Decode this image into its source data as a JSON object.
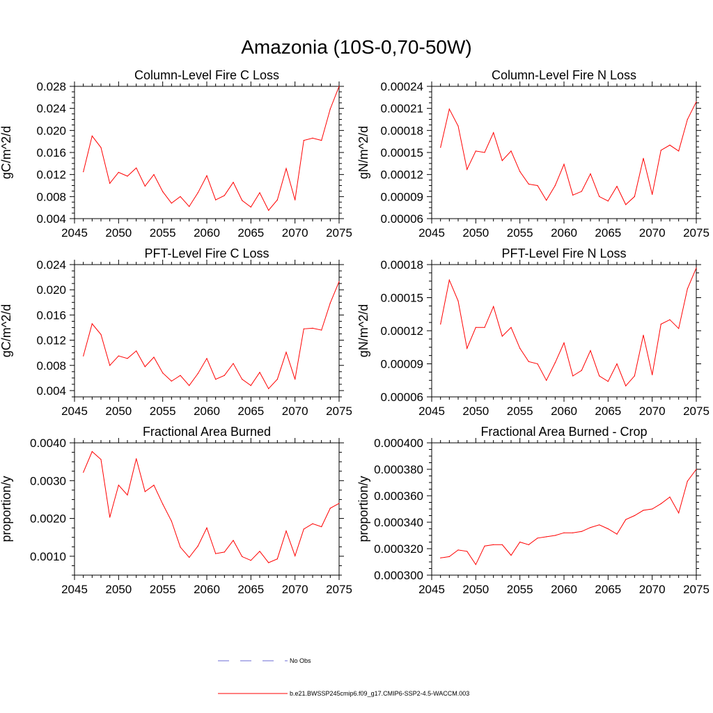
{
  "title": "Amazonia (10S-0,70-50W)",
  "line_color": "#ff0000",
  "obs_color": "#6b6bd6",
  "legend": [
    {
      "label": "No Obs",
      "style": "dashed",
      "color": "#6b6bd6"
    },
    {
      "label": "b.e21.BWSSP245cmip6.f09_g17.CMIP6-SSP2-4.5-WACCM.003",
      "style": "solid",
      "color": "#ff0000"
    }
  ],
  "chart_data": [
    {
      "type": "line",
      "title": "Column-Level Fire C Loss",
      "ylabel": "gC/m^2/d",
      "xlim": [
        2045,
        2075
      ],
      "ylim": [
        0.004,
        0.028
      ],
      "xticks": [
        "2045",
        "2050",
        "2055",
        "2060",
        "2065",
        "2070",
        "2075"
      ],
      "yticks": [
        "0.004",
        "0.008",
        "0.012",
        "0.016",
        "0.020",
        "0.024",
        "0.028"
      ],
      "x": [
        2046,
        2047,
        2048,
        2049,
        2050,
        2051,
        2052,
        2053,
        2054,
        2055,
        2056,
        2057,
        2058,
        2059,
        2060,
        2061,
        2062,
        2063,
        2064,
        2065,
        2066,
        2067,
        2068,
        2069,
        2070,
        2071,
        2072,
        2073,
        2074,
        2075
      ],
      "values": [
        0.0125,
        0.019,
        0.0169,
        0.0104,
        0.0124,
        0.0117,
        0.0132,
        0.0099,
        0.012,
        0.0089,
        0.0068,
        0.008,
        0.0062,
        0.0087,
        0.0118,
        0.0074,
        0.0082,
        0.0106,
        0.0073,
        0.0061,
        0.0087,
        0.0055,
        0.0074,
        0.0131,
        0.0074,
        0.0182,
        0.0186,
        0.0182,
        0.0239,
        0.028
      ]
    },
    {
      "type": "line",
      "title": "Column-Level Fire N Loss",
      "ylabel": "gN/m^2/d",
      "xlim": [
        2045,
        2075
      ],
      "ylim": [
        6e-05,
        0.00024
      ],
      "xticks": [
        "2045",
        "2050",
        "2055",
        "2060",
        "2065",
        "2070",
        "2075"
      ],
      "yticks": [
        "0.00006",
        "0.00009",
        "0.00012",
        "0.00015",
        "0.00018",
        "0.00021",
        "0.00024"
      ],
      "x": [
        2046,
        2047,
        2048,
        2049,
        2050,
        2051,
        2052,
        2053,
        2054,
        2055,
        2056,
        2057,
        2058,
        2059,
        2060,
        2061,
        2062,
        2063,
        2064,
        2065,
        2066,
        2067,
        2068,
        2069,
        2070,
        2071,
        2072,
        2073,
        2074,
        2075
      ],
      "values": [
        0.000157,
        0.000209,
        0.000186,
        0.000127,
        0.000152,
        0.00015,
        0.000177,
        0.000139,
        0.000152,
        0.000124,
        0.000107,
        0.000105,
        8.5e-05,
        0.000105,
        0.000134,
        9.2e-05,
        9.7e-05,
        0.000121,
        9e-05,
        8.4e-05,
        0.000104,
        7.9e-05,
        9e-05,
        0.000142,
        9.3e-05,
        0.000153,
        0.00016,
        0.000152,
        0.000195,
        0.000219
      ]
    },
    {
      "type": "line",
      "title": "PFT-Level Fire C Loss",
      "ylabel": "gC/m^2/d",
      "xlim": [
        2045,
        2075
      ],
      "ylim": [
        0.003,
        0.024
      ],
      "xticks": [
        "2045",
        "2050",
        "2055",
        "2060",
        "2065",
        "2070",
        "2075"
      ],
      "yticks": [
        "0.004",
        "0.008",
        "0.012",
        "0.016",
        "0.020",
        "0.024"
      ],
      "x": [
        2046,
        2047,
        2048,
        2049,
        2050,
        2051,
        2052,
        2053,
        2054,
        2055,
        2056,
        2057,
        2058,
        2059,
        2060,
        2061,
        2062,
        2063,
        2064,
        2065,
        2066,
        2067,
        2068,
        2069,
        2070,
        2071,
        2072,
        2073,
        2074,
        2075
      ],
      "values": [
        0.0095,
        0.0146,
        0.0129,
        0.008,
        0.0095,
        0.0091,
        0.0103,
        0.0078,
        0.0093,
        0.0068,
        0.0055,
        0.0064,
        0.0048,
        0.0067,
        0.0091,
        0.0058,
        0.0064,
        0.0083,
        0.0058,
        0.0048,
        0.0069,
        0.0043,
        0.0058,
        0.0101,
        0.0058,
        0.0138,
        0.0139,
        0.0136,
        0.0179,
        0.0213
      ]
    },
    {
      "type": "line",
      "title": "PFT-Level Fire N Loss",
      "ylabel": "gN/m^2/d",
      "xlim": [
        2045,
        2075
      ],
      "ylim": [
        6e-05,
        0.00018
      ],
      "xticks": [
        "2045",
        "2050",
        "2055",
        "2060",
        "2065",
        "2070",
        "2075"
      ],
      "yticks": [
        "0.00006",
        "0.00009",
        "0.00012",
        "0.00015",
        "0.00018"
      ],
      "x": [
        2046,
        2047,
        2048,
        2049,
        2050,
        2051,
        2052,
        2053,
        2054,
        2055,
        2056,
        2057,
        2058,
        2059,
        2060,
        2061,
        2062,
        2063,
        2064,
        2065,
        2066,
        2067,
        2068,
        2069,
        2070,
        2071,
        2072,
        2073,
        2074,
        2075
      ],
      "values": [
        0.000126,
        0.000166,
        0.000147,
        0.000104,
        0.000123,
        0.000123,
        0.000142,
        0.000115,
        0.000123,
        0.000104,
        9.2e-05,
        9e-05,
        7.5e-05,
        9.1e-05,
        0.000109,
        7.9e-05,
        8.4e-05,
        0.000102,
        7.9e-05,
        7.4e-05,
        9e-05,
        7e-05,
        7.9e-05,
        0.000116,
        8e-05,
        0.000126,
        0.00013,
        0.000122,
        0.000158,
        0.000177
      ]
    },
    {
      "type": "line",
      "title": "Fractional Area Burned",
      "ylabel": "proportion/y",
      "xlim": [
        2045,
        2075
      ],
      "ylim": [
        0.0005,
        0.004
      ],
      "xticks": [
        "2045",
        "2050",
        "2055",
        "2060",
        "2065",
        "2070",
        "2075"
      ],
      "yticks": [
        "0.0010",
        "0.0020",
        "0.0030",
        "0.0040"
      ],
      "x": [
        2046,
        2047,
        2048,
        2049,
        2050,
        2051,
        2052,
        2053,
        2054,
        2055,
        2056,
        2057,
        2058,
        2059,
        2060,
        2061,
        2062,
        2063,
        2064,
        2065,
        2066,
        2067,
        2068,
        2069,
        2070,
        2071,
        2072,
        2073,
        2074,
        2075
      ],
      "values": [
        0.00322,
        0.00377,
        0.00356,
        0.00203,
        0.00288,
        0.00262,
        0.00358,
        0.00271,
        0.00288,
        0.00238,
        0.00193,
        0.00124,
        0.00097,
        0.00127,
        0.00175,
        0.00107,
        0.00111,
        0.00142,
        0.00099,
        0.00089,
        0.00113,
        0.00083,
        0.00093,
        0.00167,
        0.00101,
        0.00172,
        0.00186,
        0.00178,
        0.00227,
        0.0024
      ]
    },
    {
      "type": "line",
      "title": "Fractional Area Burned - Crop",
      "ylabel": "proportion/y",
      "xlim": [
        2045,
        2075
      ],
      "ylim": [
        0.0003,
        0.0004
      ],
      "xticks": [
        "2045",
        "2050",
        "2055",
        "2060",
        "2065",
        "2070",
        "2075"
      ],
      "yticks": [
        "0.000300",
        "0.000320",
        "0.000340",
        "0.000360",
        "0.000380",
        "0.000400"
      ],
      "x": [
        2046,
        2047,
        2048,
        2049,
        2050,
        2051,
        2052,
        2053,
        2054,
        2055,
        2056,
        2057,
        2058,
        2059,
        2060,
        2061,
        2062,
        2063,
        2064,
        2065,
        2066,
        2067,
        2068,
        2069,
        2070,
        2071,
        2072,
        2073,
        2074,
        2075
      ],
      "values": [
        0.000313,
        0.000314,
        0.000319,
        0.000318,
        0.000308,
        0.000322,
        0.000323,
        0.000323,
        0.000315,
        0.000325,
        0.000323,
        0.000328,
        0.000329,
        0.00033,
        0.000332,
        0.000332,
        0.000333,
        0.000336,
        0.000338,
        0.000335,
        0.000331,
        0.000342,
        0.000345,
        0.000349,
        0.00035,
        0.000354,
        0.000359,
        0.000347,
        0.000371,
        0.00038
      ]
    }
  ]
}
